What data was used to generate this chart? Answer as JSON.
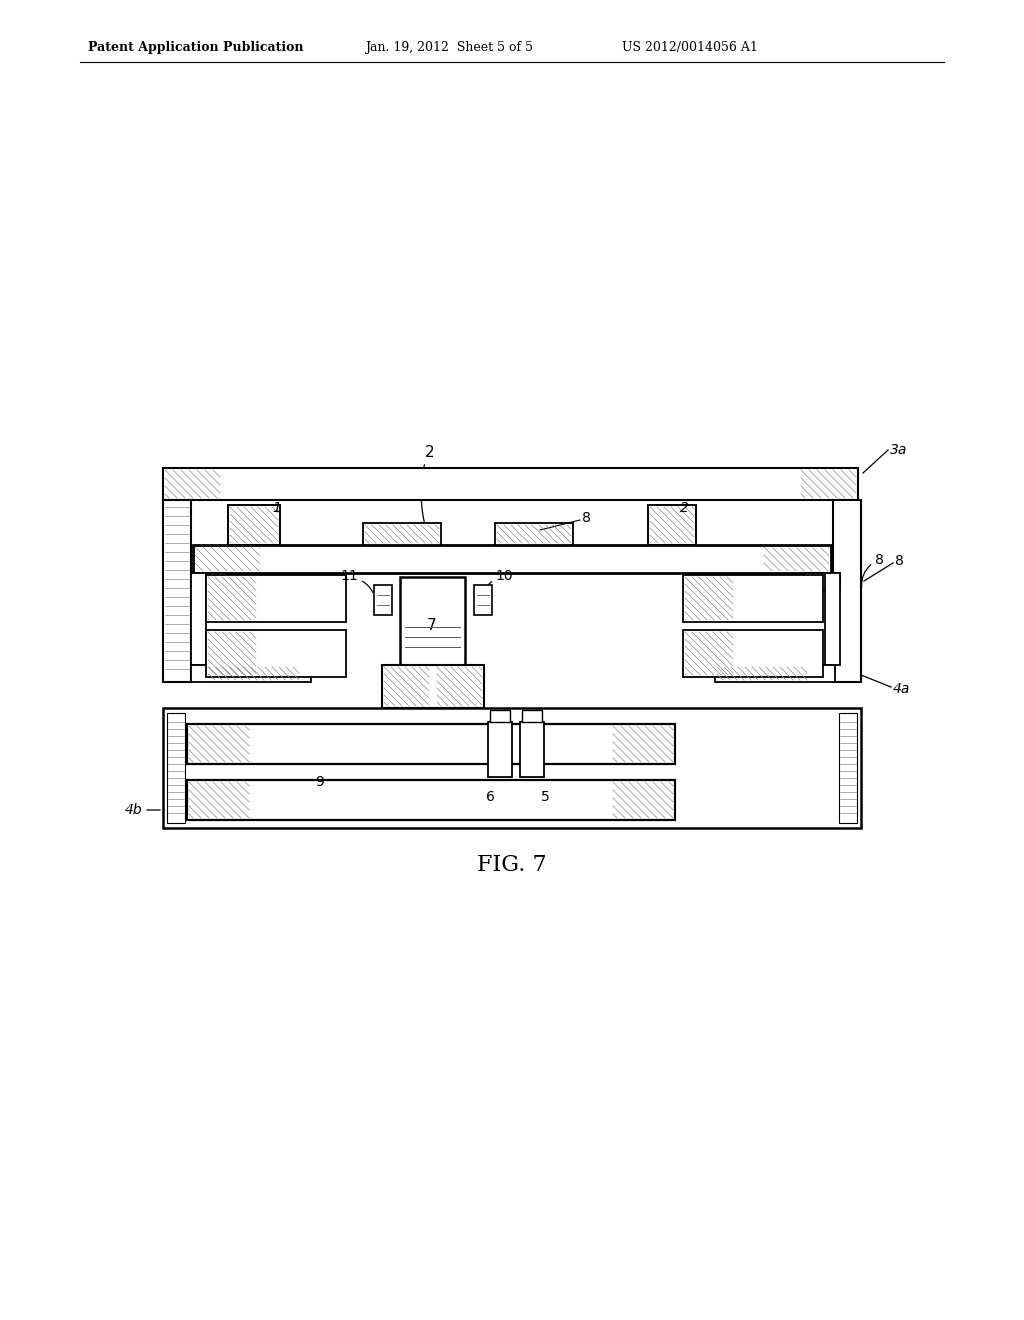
{
  "bg_color": "#ffffff",
  "line_color": "#000000",
  "header_text": "Patent Application Publication",
  "header_date": "Jan. 19, 2012  Sheet 5 of 5",
  "header_patent": "US 2012/0014056 A1",
  "fig_label": "FIG. 7"
}
